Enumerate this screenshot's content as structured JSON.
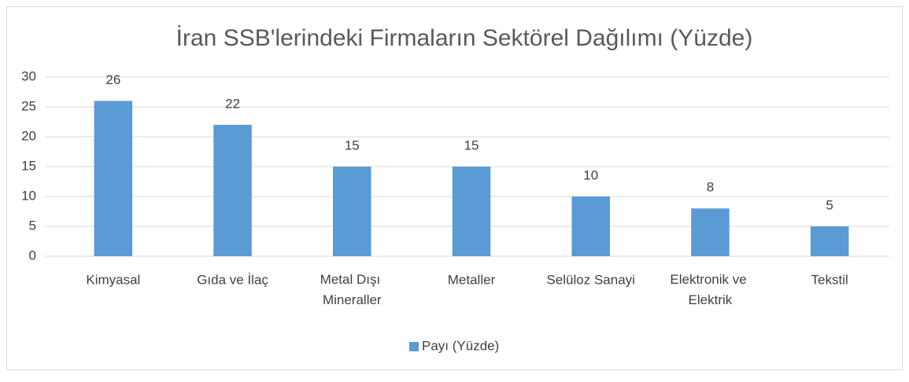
{
  "chart_data": {
    "type": "bar",
    "title": "İran SSB'lerindeki Firmaların Sektörel Dağılımı (Yüzde)",
    "categories": [
      "Kimyasal",
      "Gıda ve İlaç",
      "Metal Dışı Mineraller",
      "Metaller",
      "Selüloz Sanayi",
      "Elektronik ve Elektrik",
      "Tekstil"
    ],
    "series": [
      {
        "name": "Payı (Yüzde)",
        "color": "#5b9bd5",
        "values": [
          26,
          22,
          15,
          15,
          10,
          8,
          5
        ]
      }
    ],
    "ylim": [
      0,
      30
    ],
    "yticks": [
      0,
      5,
      10,
      15,
      20,
      25,
      30
    ],
    "grid": true,
    "legend": "bottom",
    "data_labels": true
  }
}
